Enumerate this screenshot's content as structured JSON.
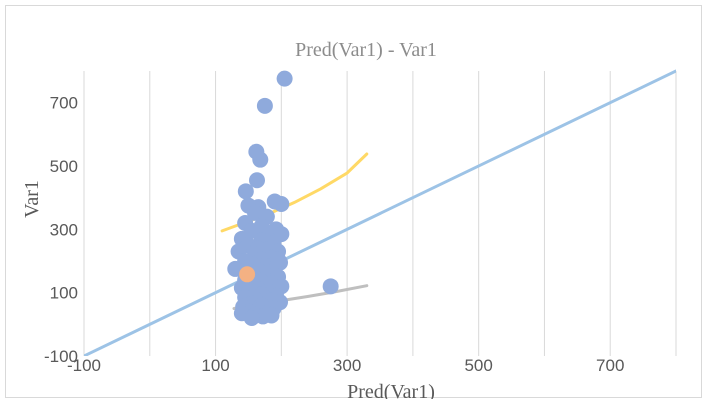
{
  "chart_data": {
    "type": "scatter",
    "title": "Pred(Var1) - Var1",
    "xlabel": "Pred(Var1)",
    "ylabel": "Var1",
    "xlim": [
      -100,
      800
    ],
    "ylim": [
      -100,
      800
    ],
    "x_ticks": [
      "-100",
      "100",
      "300",
      "500",
      "700"
    ],
    "y_ticks": [
      "-100",
      "100",
      "300",
      "500",
      "700"
    ],
    "grid": "vertical",
    "colors": {
      "points": "#8faadc",
      "highlight": "#f4b183",
      "identity_line": "#9dc3e6",
      "upper_band": "#ffd966",
      "lower_band": "#bfbfbf",
      "grid": "#d9d9d9"
    },
    "series": [
      {
        "values": [
          [
            205,
            776
          ],
          [
            175,
            690
          ],
          [
            162,
            545
          ],
          [
            168,
            520
          ],
          [
            163,
            455
          ],
          [
            146,
            420
          ],
          [
            190,
            388
          ],
          [
            200,
            380
          ],
          [
            165,
            370
          ],
          [
            150,
            375
          ],
          [
            160,
            352
          ],
          [
            178,
            340
          ],
          [
            145,
            320
          ],
          [
            170,
            310
          ],
          [
            192,
            300
          ],
          [
            155,
            295
          ],
          [
            182,
            285
          ],
          [
            200,
            285
          ],
          [
            140,
            270
          ],
          [
            170,
            265
          ],
          [
            188,
            258
          ],
          [
            150,
            250
          ],
          [
            165,
            240
          ],
          [
            178,
            235
          ],
          [
            195,
            230
          ],
          [
            135,
            230
          ],
          [
            160,
            220
          ],
          [
            185,
            210
          ],
          [
            170,
            205
          ],
          [
            145,
            200
          ],
          [
            198,
            195
          ],
          [
            155,
            190
          ],
          [
            175,
            185
          ],
          [
            190,
            180
          ],
          [
            140,
            175
          ],
          [
            165,
            170
          ],
          [
            185,
            165
          ],
          [
            150,
            160
          ],
          [
            178,
            155
          ],
          [
            195,
            150
          ],
          [
            160,
            145
          ],
          [
            145,
            140
          ],
          [
            170,
            135
          ],
          [
            188,
            130
          ],
          [
            155,
            125
          ],
          [
            200,
            120
          ],
          [
            140,
            115
          ],
          [
            165,
            110
          ],
          [
            180,
            105
          ],
          [
            150,
            100
          ],
          [
            170,
            95
          ],
          [
            192,
            90
          ],
          [
            145,
            85
          ],
          [
            160,
            80
          ],
          [
            183,
            75
          ],
          [
            198,
            70
          ],
          [
            155,
            65
          ],
          [
            170,
            60
          ],
          [
            142,
            55
          ],
          [
            188,
            50
          ],
          [
            165,
            45
          ],
          [
            150,
            40
          ],
          [
            178,
            35
          ],
          [
            160,
            30
          ],
          [
            140,
            35
          ],
          [
            172,
            25
          ],
          [
            155,
            20
          ],
          [
            185,
            28
          ],
          [
            130,
            175
          ],
          [
            195,
            205
          ],
          [
            275,
            120
          ]
        ]
      },
      {
        "values": [
          [
            148,
            158
          ]
        ]
      }
    ],
    "lines": [
      {
        "values": [
          [
            -100,
            -100
          ],
          [
            800,
            800
          ]
        ]
      },
      {
        "values": [
          [
            110,
            295
          ],
          [
            140,
            318
          ],
          [
            180,
            348
          ],
          [
            220,
            385
          ],
          [
            260,
            428
          ],
          [
            300,
            478
          ],
          [
            330,
            538
          ]
        ]
      },
      {
        "values": [
          [
            128,
            50
          ],
          [
            160,
            62
          ],
          [
            200,
            75
          ],
          [
            240,
            88
          ],
          [
            280,
            102
          ],
          [
            330,
            122
          ]
        ]
      }
    ]
  }
}
